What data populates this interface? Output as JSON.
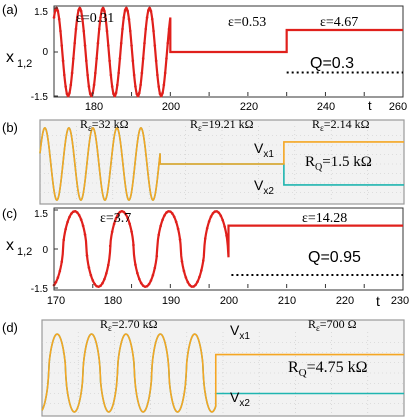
{
  "colors": {
    "sim_line": "#e0201c",
    "dotted": "#000000",
    "scope_orange": "#f5a623",
    "scope_teal": "#1fb5b0",
    "scope_bg": "#f2f2f2",
    "scope_grid": "#c8c8c8"
  },
  "chart_data": [
    {
      "panel": "(a)",
      "type": "line",
      "ylabel": "x",
      "ylabel_sub": "1,2",
      "xlabel": "t",
      "xlim": [
        170,
        260
      ],
      "ylim": [
        -1.5,
        1.5
      ],
      "xticks": [
        "180",
        "200",
        "220",
        "240",
        "260"
      ],
      "yticks": [
        "1.5",
        "0",
        "-1.5"
      ],
      "annotations": [
        "ε=0.31",
        "ε=0.53",
        "ε=4.67",
        "Q=0.3"
      ],
      "series": [
        {
          "segments": [
            {
              "kind": "sine",
              "t0": 170,
              "t1": 200,
              "amp": 1.5,
              "period": 6.0,
              "phase": 0.9
            },
            {
              "kind": "const",
              "t0": 200,
              "t1": 230,
              "y": 0.0
            },
            {
              "kind": "const",
              "t0": 230,
              "t1": 260,
              "y": 0.75
            }
          ]
        },
        {
          "dotted": true,
          "segments": [
            {
              "kind": "const",
              "t0": 230,
              "t1": 260,
              "y": -0.7
            }
          ]
        }
      ]
    },
    {
      "panel": "(b)",
      "type": "line",
      "annotations": [
        "R",
        "ε",
        "=32 kΩ",
        "=19.21 kΩ",
        "=2.14 kΩ",
        "=1.5 kΩ",
        "Q"
      ],
      "labels": {
        "vx1": "V",
        "vx1_sub": "x1",
        "vx2": "V",
        "vx2_sub": "x2"
      },
      "xlim": [
        0,
        100
      ],
      "ylim": [
        -1,
        1
      ],
      "series": [
        {
          "name_bind": "x1",
          "segments": [
            {
              "kind": "sine",
              "t0": 0,
              "t1": 33,
              "amp": 0.95,
              "period": 6.6,
              "phase": 0.3
            },
            {
              "kind": "const",
              "t0": 33,
              "t1": 67,
              "y": 0.0
            },
            {
              "kind": "const",
              "t0": 67,
              "t1": 100,
              "y": 0.58
            }
          ]
        },
        {
          "name_bind": "x2",
          "segments": [
            {
              "kind": "sine",
              "t0": 0,
              "t1": 33,
              "amp": 0.95,
              "period": 6.6,
              "phase": 0.3
            },
            {
              "kind": "const",
              "t0": 33,
              "t1": 67,
              "y": 0.0
            },
            {
              "kind": "const",
              "t0": 67,
              "t1": 100,
              "y": -0.55
            }
          ]
        }
      ]
    },
    {
      "panel": "(c)",
      "type": "line",
      "ylabel": "x",
      "ylabel_sub": "1,2",
      "xlabel": "t",
      "xlim": [
        170,
        230
      ],
      "ylim": [
        -1.5,
        1.5
      ],
      "xticks": [
        "170",
        "180",
        "190",
        "200",
        "210",
        "220",
        "230"
      ],
      "yticks": [
        "1.5",
        "0",
        "-1.5"
      ],
      "annotations": [
        "ε=3.7",
        "ε=14.28",
        "Q=0.95"
      ],
      "series": [
        {
          "segments": [
            {
              "kind": "relax",
              "t0": 170,
              "t1": 200,
              "amp": 1.45,
              "period": 8.1
            },
            {
              "kind": "const",
              "t0": 200,
              "t1": 230,
              "y": 0.9
            }
          ]
        },
        {
          "dotted": true,
          "segments": [
            {
              "kind": "const",
              "t0": 200.5,
              "t1": 230,
              "y": -1.0
            }
          ]
        }
      ]
    },
    {
      "panel": "(d)",
      "type": "line",
      "annotations": [
        "R",
        "ε",
        "=2.70 kΩ",
        "=700 Ω",
        "=4.75 kΩ",
        "Q"
      ],
      "labels": {
        "vx1": "V",
        "vx1_sub": "x1",
        "vx2": "V",
        "vx2_sub": "x2"
      },
      "xlim": [
        0,
        100
      ],
      "ylim": [
        -1,
        1
      ],
      "series": [
        {
          "name_bind": "x1",
          "segments": [
            {
              "kind": "relax",
              "t0": 0,
              "t1": 48,
              "amp": 0.95,
              "period": 9.5
            },
            {
              "kind": "const",
              "t0": 48,
              "t1": 100,
              "y": 0.45
            }
          ]
        },
        {
          "name_bind": "x2",
          "segments": [
            {
              "kind": "relax",
              "t0": 0,
              "t1": 48,
              "amp": 0.95,
              "period": 9.5
            },
            {
              "kind": "const",
              "t0": 48,
              "t1": 100,
              "y": -0.5
            }
          ]
        }
      ]
    }
  ]
}
